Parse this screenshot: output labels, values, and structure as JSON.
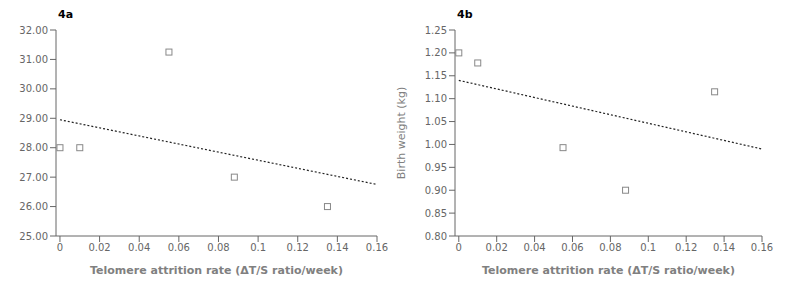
{
  "chart_data": [
    {
      "type": "scatter",
      "annotations": [
        "4a"
      ],
      "xlabel": "Telomere attrition rate (ΔT/S ratio/week)",
      "xlim": [
        -0.002,
        0.16
      ],
      "xticks": [
        0,
        0.02,
        0.04,
        0.06,
        0.08,
        0.1,
        0.12,
        0.14,
        0.16
      ],
      "ylim": [
        25.0,
        32.0
      ],
      "yticks": [
        {
          "value": 25.0,
          "label": "25.00"
        },
        {
          "value": 26.0,
          "label": "26.00"
        },
        {
          "value": 27.0,
          "label": "27.00"
        },
        {
          "value": 28.0,
          "label": "28.00"
        },
        {
          "value": 29.0,
          "label": "29.00"
        },
        {
          "value": 30.0,
          "label": "30.00"
        },
        {
          "value": 31.0,
          "label": "31.00"
        },
        {
          "value": 32.0,
          "label": "32.00"
        }
      ],
      "grid": false,
      "series": [
        {
          "type": "scatter",
          "marker": "square",
          "color": "#888888",
          "x": [
            0.0,
            0.01,
            0.055,
            0.088,
            0.135
          ],
          "values": [
            28.0,
            28.0,
            31.25,
            27.0,
            26.0
          ]
        },
        {
          "type": "line",
          "line_style": "dotted",
          "color": "#222222",
          "x": [
            0.0,
            0.16
          ],
          "values": [
            28.95,
            26.75
          ]
        }
      ]
    },
    {
      "type": "scatter",
      "annotations": [
        "4b"
      ],
      "xlabel": "Telomere attrition rate (ΔT/S ratio/week)",
      "ylabel": "Birth weight (kg)",
      "xlim": [
        -0.002,
        0.16
      ],
      "xticks": [
        0,
        0.02,
        0.04,
        0.06,
        0.08,
        0.1,
        0.12,
        0.14,
        0.16
      ],
      "ylim": [
        0.8,
        1.25
      ],
      "yticks": [
        {
          "value": 0.8,
          "label": "0.80"
        },
        {
          "value": 0.85,
          "label": "0.85"
        },
        {
          "value": 0.9,
          "label": "0.90"
        },
        {
          "value": 0.95,
          "label": "0.95"
        },
        {
          "value": 1.0,
          "label": "1.00"
        },
        {
          "value": 1.05,
          "label": "1.05"
        },
        {
          "value": 1.1,
          "label": "1.10"
        },
        {
          "value": 1.15,
          "label": "1.15"
        },
        {
          "value": 1.2,
          "label": "1.20"
        },
        {
          "value": 1.25,
          "label": "1.25"
        }
      ],
      "grid": false,
      "series": [
        {
          "type": "scatter",
          "marker": "square",
          "color": "#888888",
          "x": [
            0.0,
            0.01,
            0.055,
            0.088,
            0.135
          ],
          "values": [
            1.2,
            1.178,
            0.993,
            0.9,
            1.115
          ]
        },
        {
          "type": "line",
          "line_style": "dotted",
          "color": "#222222",
          "x": [
            0.0,
            0.16
          ],
          "values": [
            1.14,
            0.99
          ]
        }
      ]
    }
  ]
}
